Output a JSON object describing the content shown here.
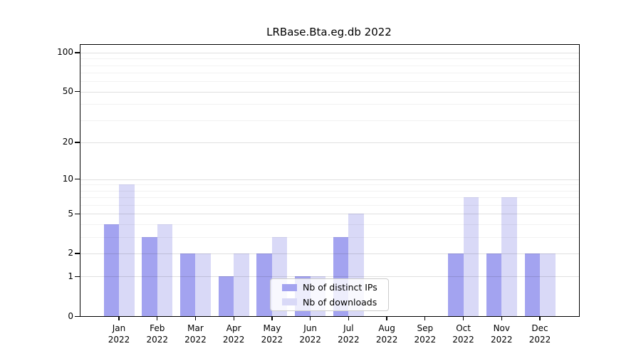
{
  "chart_data": {
    "type": "bar",
    "title": "LRBase.Bta.eg.db 2022",
    "xlabel": "",
    "ylabel": "",
    "categories": [
      "Jan",
      "Feb",
      "Mar",
      "Apr",
      "May",
      "Jun",
      "Jul",
      "Aug",
      "Sep",
      "Oct",
      "Nov",
      "Dec"
    ],
    "year_label": "2022",
    "series": [
      {
        "name": "Nb of distinct IPs",
        "color": "#a3a3f0",
        "values": [
          4,
          3,
          2,
          1,
          2,
          1,
          3,
          0,
          0,
          2,
          2,
          2
        ]
      },
      {
        "name": "Nb of downloads",
        "color": "#d9d9f7",
        "values": [
          9,
          4,
          2,
          2,
          3,
          1,
          5,
          0,
          0,
          7,
          7,
          2
        ]
      }
    ],
    "y_scale": "log1p",
    "ylim": [
      0,
      114
    ],
    "y_major_ticks": [
      100,
      50,
      20,
      10,
      5,
      2,
      1,
      0
    ],
    "y_minor_gridlines": [
      3,
      4,
      6,
      7,
      8,
      9,
      30,
      40,
      60,
      70,
      80,
      90
    ],
    "grid": "horizontal",
    "legend_position": "inside lower center",
    "bar_group": "paired side-by-side per month"
  }
}
